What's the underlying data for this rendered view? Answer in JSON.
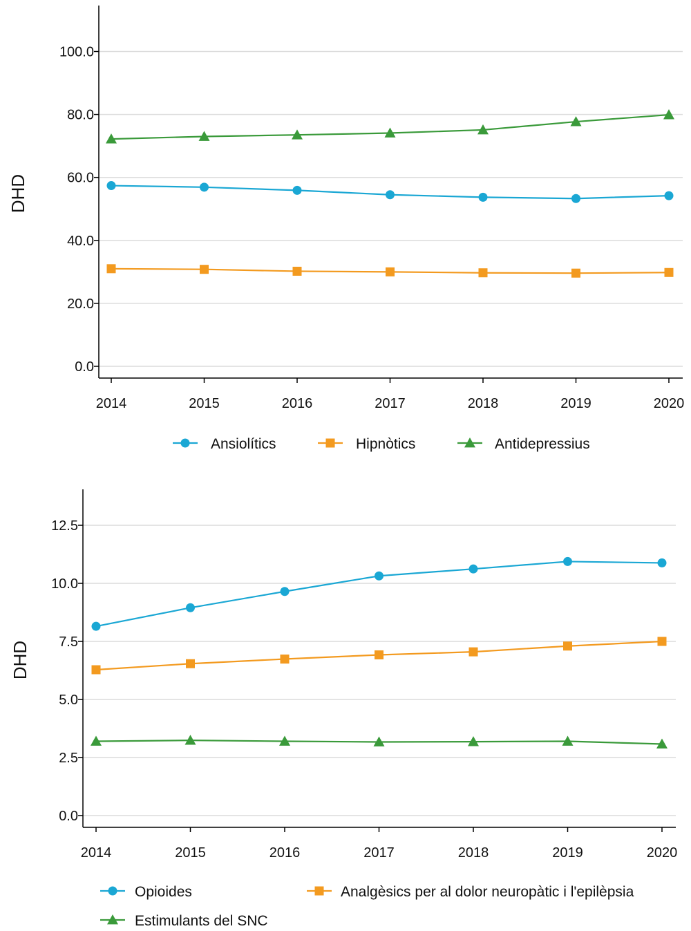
{
  "chart_data": [
    {
      "type": "line",
      "ylabel": "DHD",
      "xlabel": "",
      "x": [
        "2014",
        "2015",
        "2016",
        "2017",
        "2018",
        "2019",
        "2020"
      ],
      "ylim": [
        0,
        114
      ],
      "yticks": [
        "0.0",
        "20.0",
        "40.0",
        "60.0",
        "80.0",
        "100.0"
      ],
      "grid": true,
      "legend_position": "bottom",
      "series": [
        {
          "name": "Ansiolítics",
          "marker": "circle",
          "color": "#1aa7d4",
          "values": [
            57.4,
            56.9,
            55.9,
            54.5,
            53.7,
            53.3,
            54.2
          ]
        },
        {
          "name": "Hipnòtics",
          "marker": "square",
          "color": "#f39a1f",
          "values": [
            31.0,
            30.8,
            30.2,
            30.0,
            29.7,
            29.6,
            29.8
          ]
        },
        {
          "name": "Antidepressius",
          "marker": "triangle",
          "color": "#3a9a3a",
          "values": [
            72.2,
            73.0,
            73.5,
            74.1,
            75.1,
            77.7,
            79.9
          ]
        }
      ]
    },
    {
      "type": "line",
      "ylabel": "DHD",
      "xlabel": "",
      "x": [
        "2014",
        "2015",
        "2016",
        "2017",
        "2018",
        "2019",
        "2020"
      ],
      "ylim": [
        0,
        14.1
      ],
      "yticks": [
        "0.0",
        "2.5",
        "5.0",
        "7.5",
        "10.0",
        "12.5"
      ],
      "grid": true,
      "legend_position": "bottom",
      "series": [
        {
          "name": "Opioides",
          "marker": "circle",
          "color": "#1aa7d4",
          "values": [
            8.15,
            8.95,
            9.65,
            10.32,
            10.62,
            10.94,
            10.88
          ]
        },
        {
          "name": "Analgèsics per al dolor neuropàtic i l'epilèpsia",
          "marker": "square",
          "color": "#f39a1f",
          "values": [
            6.28,
            6.54,
            6.74,
            6.92,
            7.05,
            7.3,
            7.5
          ]
        },
        {
          "name": "Estimulants del SNC",
          "marker": "triangle",
          "color": "#3a9a3a",
          "values": [
            3.2,
            3.24,
            3.2,
            3.17,
            3.18,
            3.2,
            3.08
          ]
        }
      ]
    }
  ]
}
